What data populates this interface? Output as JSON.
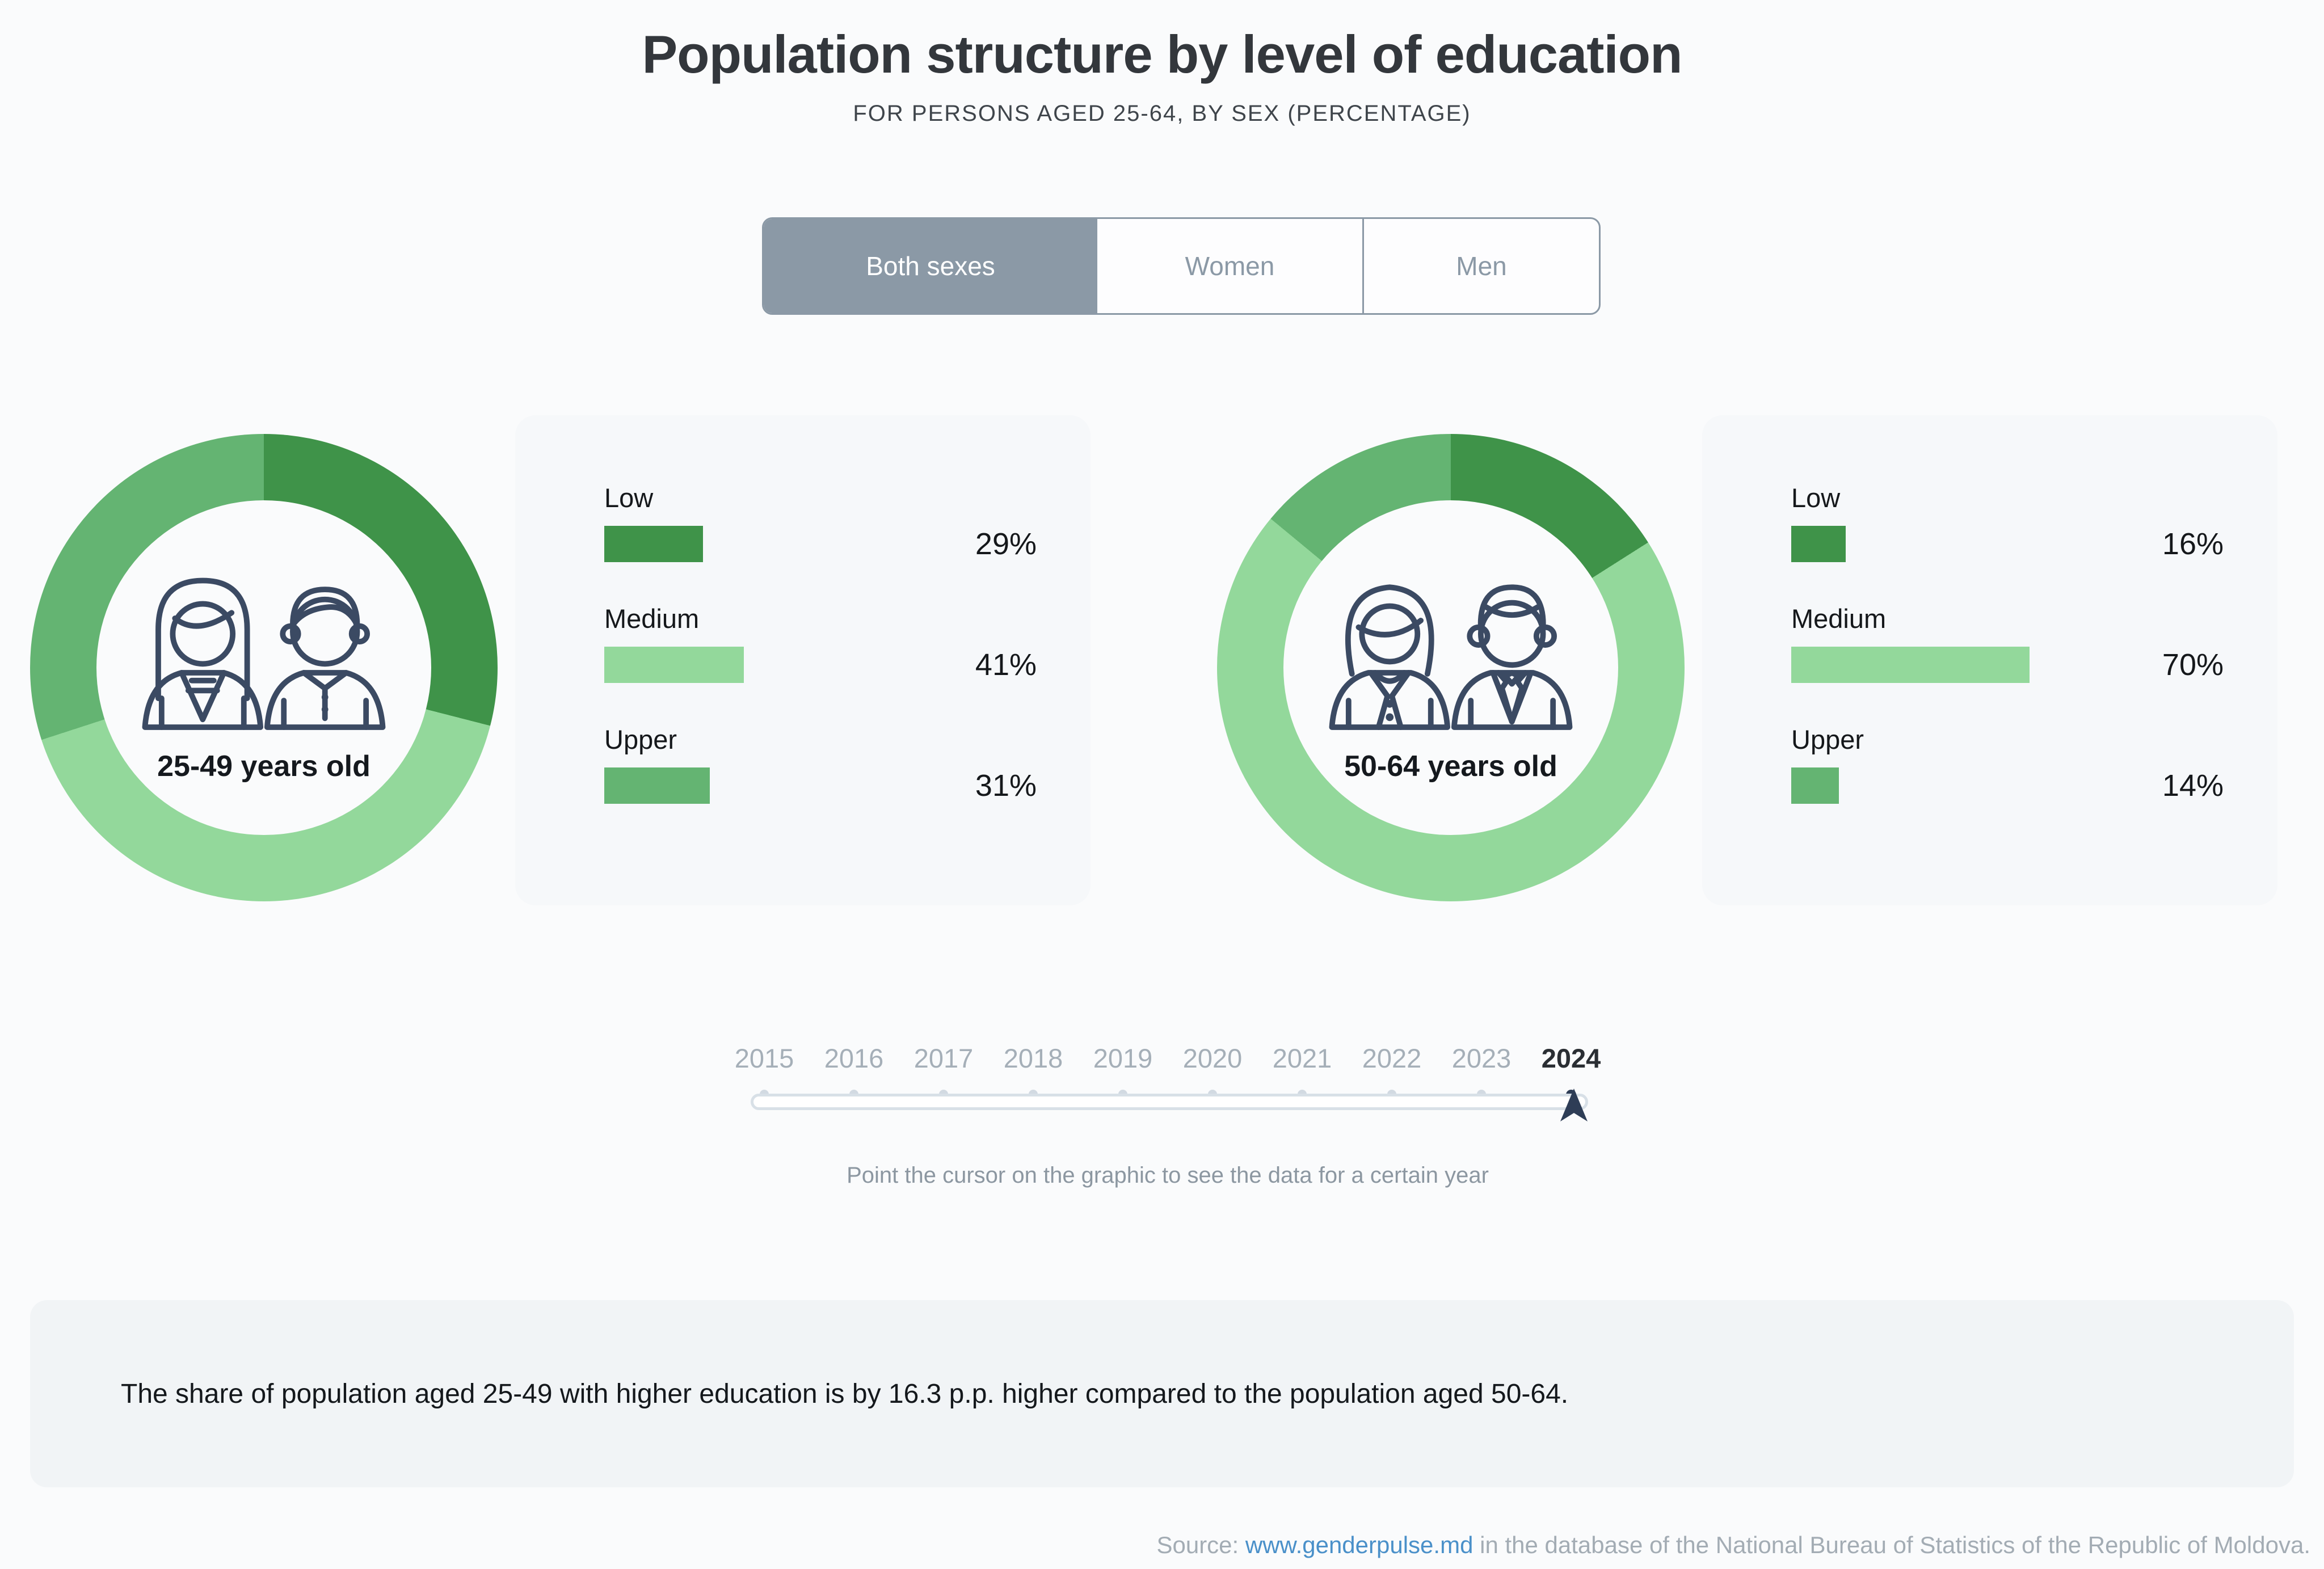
{
  "header": {
    "title": "Population structure by level of education",
    "subtitle": "FOR PERSONS AGED 25-64, BY SEX (PERCENTAGE)"
  },
  "sex_toggle": {
    "options": [
      {
        "label": "Both sexes",
        "selected": true
      },
      {
        "label": "Women",
        "selected": false
      },
      {
        "label": "Men",
        "selected": false
      }
    ]
  },
  "colors": {
    "low": "#3f9349",
    "medium": "#93d89b",
    "upper": "#64b472",
    "toggle_active": "#8b99a6",
    "accent_navy": "#2e3d56",
    "link_blue": "#4a90c9"
  },
  "chart_data": [
    {
      "type": "pie",
      "subtype": "donut",
      "title": "25-49 years old",
      "categories": [
        "Low",
        "Medium",
        "Upper"
      ],
      "values": [
        29,
        41,
        31
      ],
      "unit": "%",
      "colors": [
        "#3f9349",
        "#93d89b",
        "#64b472"
      ],
      "value_labels": [
        "29%",
        "41%",
        "31%"
      ],
      "start_angle_deg": 0,
      "direction": "clockwise"
    },
    {
      "type": "pie",
      "subtype": "donut",
      "title": "50-64 years old",
      "categories": [
        "Low",
        "Medium",
        "Upper"
      ],
      "values": [
        16,
        70,
        14
      ],
      "unit": "%",
      "colors": [
        "#3f9349",
        "#93d89b",
        "#64b472"
      ],
      "value_labels": [
        "16%",
        "70%",
        "14%"
      ],
      "start_angle_deg": 0,
      "direction": "clockwise"
    }
  ],
  "groups": [
    {
      "age_label": "25-49 years old",
      "bars": [
        {
          "label": "Low",
          "pct": 29,
          "display": "29%"
        },
        {
          "label": "Medium",
          "pct": 41,
          "display": "41%"
        },
        {
          "label": "Upper",
          "pct": 31,
          "display": "31%"
        }
      ]
    },
    {
      "age_label": "50-64 years old",
      "bars": [
        {
          "label": "Low",
          "pct": 16,
          "display": "16%"
        },
        {
          "label": "Medium",
          "pct": 70,
          "display": "70%"
        },
        {
          "label": "Upper",
          "pct": 14,
          "display": "14%"
        }
      ]
    }
  ],
  "timeline": {
    "years": [
      "2015",
      "2016",
      "2017",
      "2018",
      "2019",
      "2020",
      "2021",
      "2022",
      "2023",
      "2024"
    ],
    "selected_year": "2024",
    "hint": "Point the cursor on the graphic to see the data for a certain year"
  },
  "note": "The share of population aged 25-49 with higher education is by 16.3 p.p. higher compared to the population aged 50-64.",
  "source": {
    "prefix": "Source: ",
    "link_text": "www.genderpulse.md",
    "suffix": " in the database of the National Bureau of Statistics of the Republic of Moldova."
  }
}
